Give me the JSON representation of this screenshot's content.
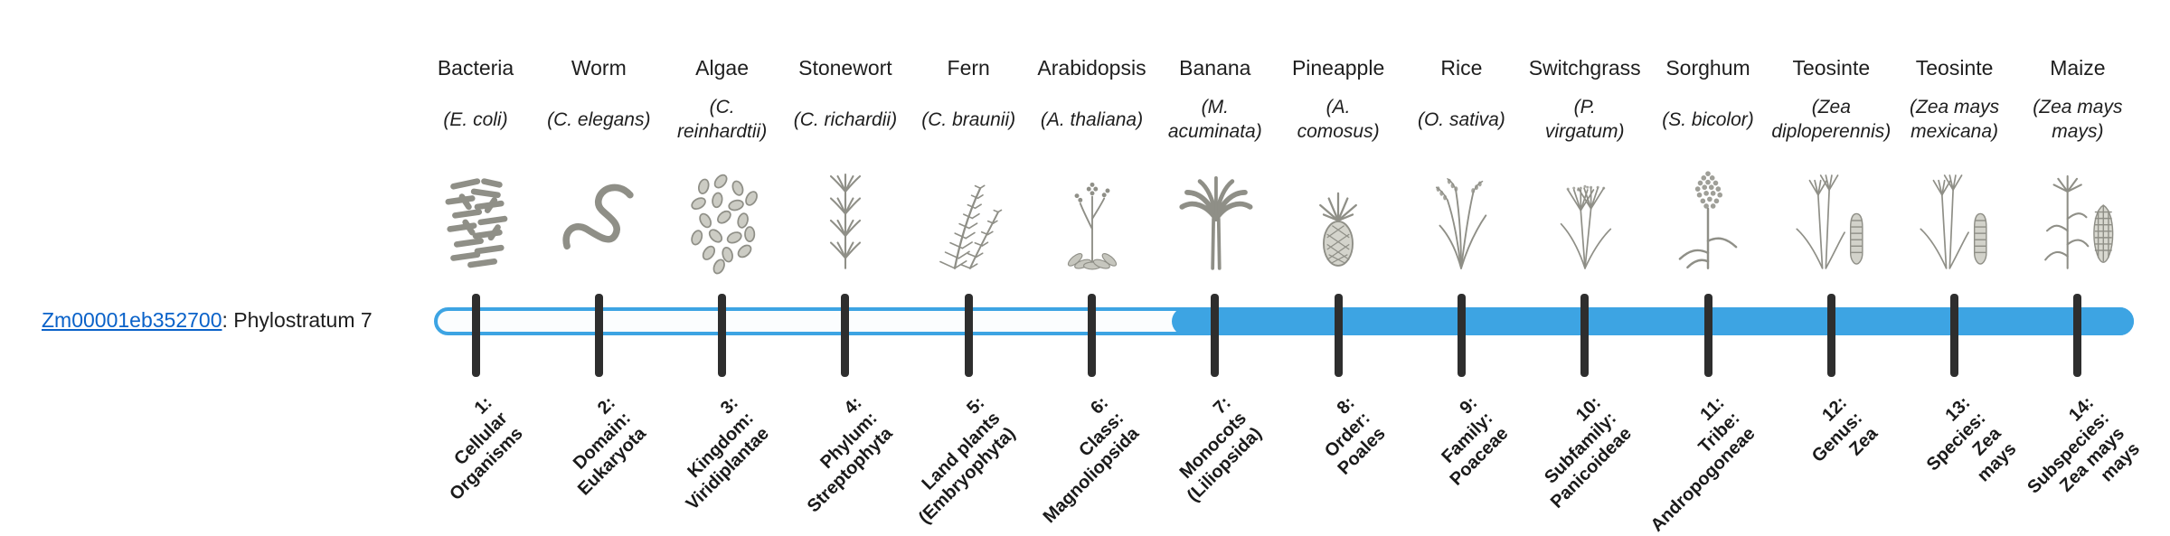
{
  "gene": {
    "link_text": "Zm00001eb352700",
    "suffix_text": ": Phylostratum 7"
  },
  "colors": {
    "bar_blue": "#3da4e3",
    "link_blue": "#0a62c9",
    "tick_dark": "#2e2e2e",
    "text_dark": "#1e1e1e",
    "icon_gray": "#8f8f87"
  },
  "timeline": {
    "strata_count": 14,
    "filled_from_stratum": 7
  },
  "organisms": [
    {
      "common": "Bacteria",
      "scientific": "(E. coli)",
      "icon": "bacteria-icon",
      "stratum_label": "1:\nCellular\nOrganisms"
    },
    {
      "common": "Worm",
      "scientific": "(C. elegans)",
      "icon": "worm-icon",
      "stratum_label": "2:\nDomain:\nEukaryota"
    },
    {
      "common": "Algae",
      "scientific": "(C.\nreinhardtii)",
      "icon": "algae-icon",
      "stratum_label": "3:\nKingdom:\nViridiplantae"
    },
    {
      "common": "Stonewort",
      "scientific": "(C. richardii)",
      "icon": "stonewort-icon",
      "stratum_label": "4:\nPhylum:\nStreptophyta"
    },
    {
      "common": "Fern",
      "scientific": "(C. braunii)",
      "icon": "fern-icon",
      "stratum_label": "5:\nLand plants\n(Embryophyta)"
    },
    {
      "common": "Arabidopsis",
      "scientific": "(A. thaliana)",
      "icon": "arabidopsis-icon",
      "stratum_label": "6:\nClass:\nMagnoliopsida"
    },
    {
      "common": "Banana",
      "scientific": "(M.\nacuminata)",
      "icon": "banana-icon",
      "stratum_label": "7:\nMonocots\n(Liliopsida)"
    },
    {
      "common": "Pineapple",
      "scientific": "(A.\ncomosus)",
      "icon": "pineapple-icon",
      "stratum_label": "8:\nOrder:\nPoales"
    },
    {
      "common": "Rice",
      "scientific": "(O. sativa)",
      "icon": "rice-icon",
      "stratum_label": "9:\nFamily:\nPoaceae"
    },
    {
      "common": "Switchgrass",
      "scientific": "(P.\nvirgatum)",
      "icon": "switchgrass-icon",
      "stratum_label": "10:\nSubfamily:\nPanicoideae"
    },
    {
      "common": "Sorghum",
      "scientific": "(S. bicolor)",
      "icon": "sorghum-icon",
      "stratum_label": "11:\nTribe:\nAndropogoneae"
    },
    {
      "common": "Teosinte",
      "scientific": "(Zea\ndiploperennis)",
      "icon": "teosinte-icon",
      "stratum_label": "12:\nGenus:\nZea"
    },
    {
      "common": "Teosinte",
      "scientific": "(Zea mays\nmexicana)",
      "icon": "teosinte-icon",
      "stratum_label": "13:\nSpecies:\nZea\nmays"
    },
    {
      "common": "Maize",
      "scientific": "(Zea mays\nmays)",
      "icon": "maize-icon",
      "stratum_label": "14:\nSubspecies:\nZea mays\nmays"
    }
  ]
}
